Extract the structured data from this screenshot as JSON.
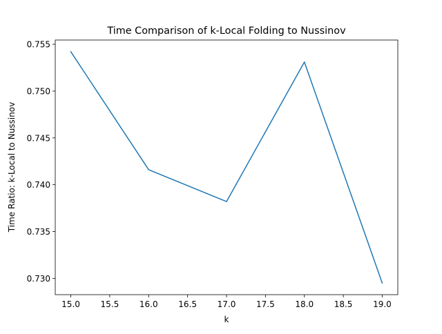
{
  "chart_data": {
    "type": "line",
    "title": "Time Comparison of k-Local Folding to Nussinov",
    "xlabel": "k",
    "ylabel": "Time Ratio: k-Local to Nussinov",
    "x": [
      15,
      16,
      17,
      18,
      19
    ],
    "series": [
      {
        "values": [
          0.7542,
          0.7416,
          0.7382,
          0.7531,
          0.7295
        ],
        "color": "#1f77b4"
      }
    ],
    "xlim": [
      14.8,
      19.2
    ],
    "ylim": [
      0.72826,
      0.75545
    ],
    "xticks": [
      "15.0",
      "15.5",
      "16.0",
      "16.5",
      "17.0",
      "17.5",
      "18.0",
      "18.5",
      "19.0"
    ],
    "yticks": [
      "0.730",
      "0.735",
      "0.740",
      "0.745",
      "0.750",
      "0.755"
    ],
    "grid": false,
    "legend": "none"
  }
}
